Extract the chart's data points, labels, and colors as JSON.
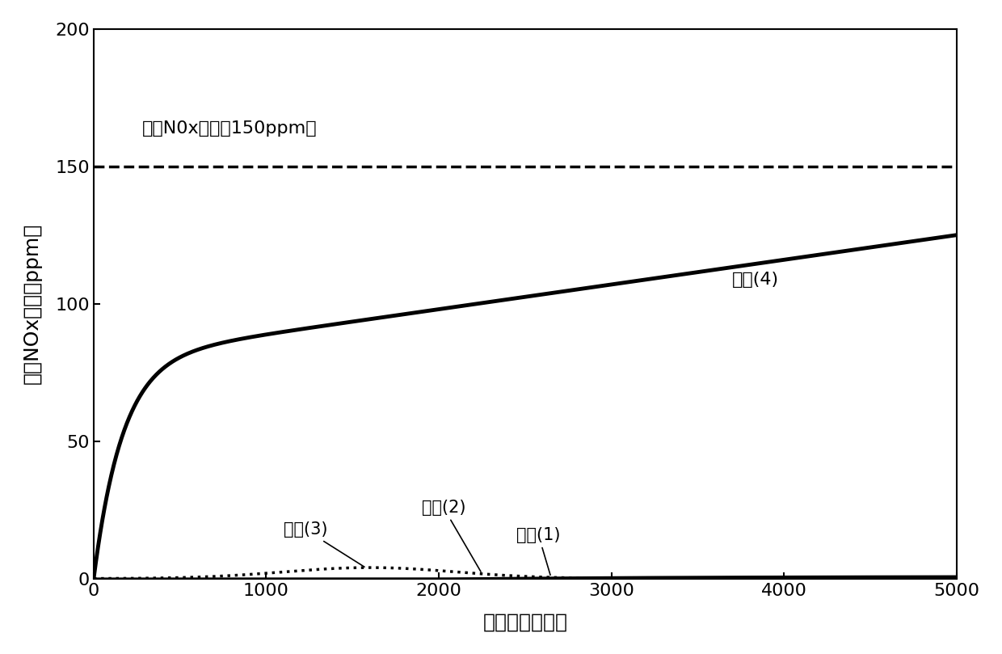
{
  "title": "",
  "xlabel": "经过时间（秒）",
  "ylabel": "出口NOx浓度（ppm）",
  "inlet_label": "入口N0x浓度（150ppm）",
  "inlet_value": 150,
  "xlim": [
    0,
    5000
  ],
  "ylim": [
    0,
    200
  ],
  "xticks": [
    0,
    1000,
    2000,
    3000,
    4000,
    5000
  ],
  "yticks": [
    0,
    50,
    100,
    150,
    200
  ],
  "condition4_label": "条件(4)",
  "condition3_label": "条件(3)",
  "condition2_label": "条件(2)",
  "condition1_label": "条件(1)",
  "background_color": "#ffffff",
  "line_color": "#000000"
}
